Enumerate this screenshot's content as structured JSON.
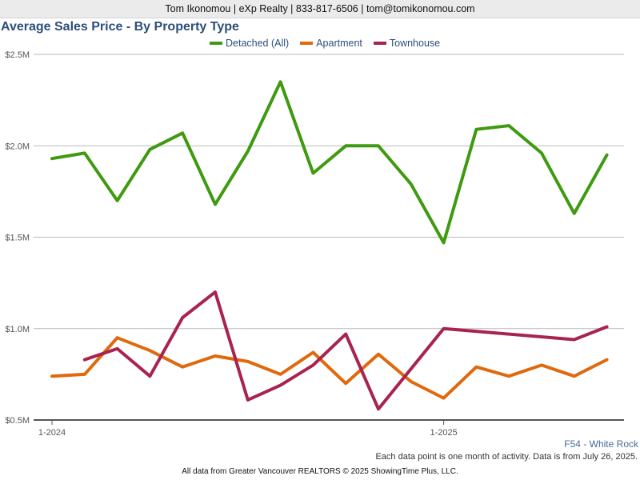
{
  "header": {
    "contact_line": "Tom Ikonomou | eXp Realty | 833-817-6506 | tom@tomikonomou.com"
  },
  "chart_data": {
    "type": "line",
    "title": "Average Sales Price - By Property Type",
    "xlabel": "",
    "ylabel": "",
    "x_tick_labels": [
      "1-2024",
      "1-2025"
    ],
    "y_tick_labels": [
      "$0.5M",
      "$1.0M",
      "$1.5M",
      "$2.0M",
      "$2.5M"
    ],
    "y_ticks": [
      0.5,
      1.0,
      1.5,
      2.0,
      2.5
    ],
    "ylim": [
      0.5,
      2.5
    ],
    "y_unit": "$M",
    "grid": true,
    "legend_position": "top",
    "x": [
      "2024-01",
      "2024-02",
      "2024-03",
      "2024-04",
      "2024-05",
      "2024-06",
      "2024-07",
      "2024-08",
      "2024-09",
      "2024-10",
      "2024-11",
      "2024-12",
      "2025-01",
      "2025-02",
      "2025-03",
      "2025-04",
      "2025-05",
      "2025-06"
    ],
    "series": [
      {
        "name": "Detached (All)",
        "color": "#3f9a10",
        "values": [
          1.93,
          1.96,
          1.7,
          1.98,
          2.07,
          1.68,
          1.97,
          2.35,
          1.85,
          2.0,
          2.0,
          1.79,
          1.47,
          2.09,
          2.11,
          1.96,
          1.63,
          1.95
        ]
      },
      {
        "name": "Apartment",
        "color": "#e0690d",
        "values": [
          0.74,
          0.75,
          0.95,
          0.88,
          0.79,
          0.85,
          0.82,
          0.75,
          0.87,
          0.7,
          0.86,
          0.71,
          0.62,
          0.79,
          0.74,
          0.8,
          0.74,
          0.83
        ]
      },
      {
        "name": "Townhouse",
        "color": "#a8234f",
        "values": [
          null,
          0.83,
          0.89,
          0.74,
          1.06,
          1.2,
          0.61,
          0.69,
          0.8,
          0.97,
          0.56,
          null,
          1.0,
          null,
          null,
          null,
          0.94,
          1.01
        ]
      }
    ]
  },
  "footer": {
    "region_label": "F54 - White Rock",
    "data_note": "Each data point is one month of activity. Data is from July 26, 2025.",
    "credit": "All data from Greater Vancouver REALTORS © 2025 ShowingTime Plus, LLC."
  }
}
